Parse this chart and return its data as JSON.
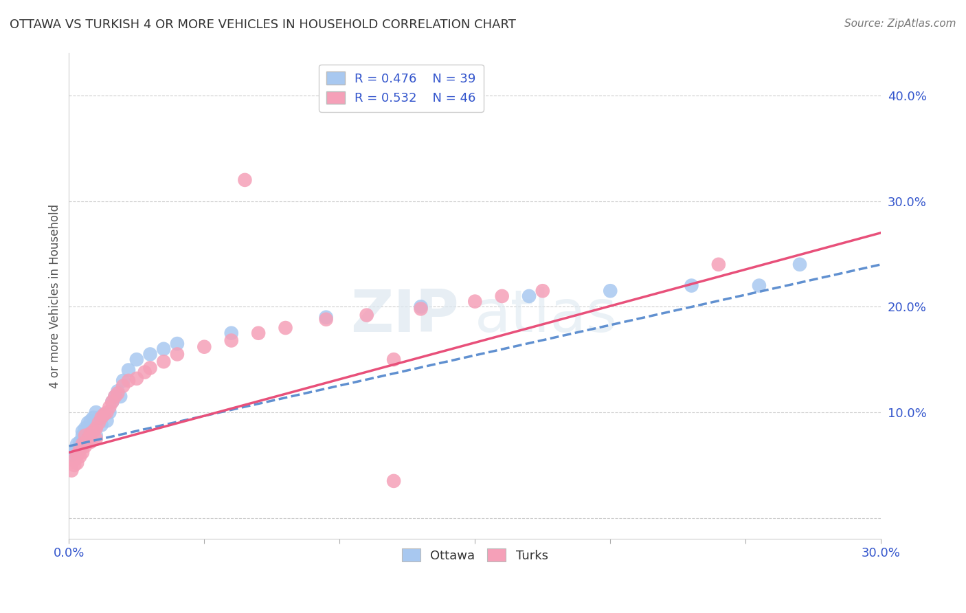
{
  "title": "OTTAWA VS TURKISH 4 OR MORE VEHICLES IN HOUSEHOLD CORRELATION CHART",
  "source": "Source: ZipAtlas.com",
  "ylabel_label": "4 or more Vehicles in Household",
  "xlim": [
    0.0,
    0.3
  ],
  "ylim": [
    -0.02,
    0.44
  ],
  "xticks": [
    0.0,
    0.05,
    0.1,
    0.15,
    0.2,
    0.25,
    0.3
  ],
  "xtick_labels": [
    "0.0%",
    "",
    "",
    "",
    "",
    "",
    "30.0%"
  ],
  "ytick_positions": [
    0.0,
    0.1,
    0.2,
    0.3,
    0.4
  ],
  "ytick_labels": [
    "",
    "10.0%",
    "20.0%",
    "30.0%",
    "40.0%"
  ],
  "grid_color": "#cccccc",
  "background_color": "#ffffff",
  "ottawa_color": "#a8c8f0",
  "turks_color": "#f5a0b8",
  "ottawa_line_color": "#6090d0",
  "turks_line_color": "#e8507a",
  "legend_text_color": "#3355cc",
  "watermark1": "ZIP",
  "watermark2": "atlas",
  "ottawa_scatter_x": [
    0.001,
    0.002,
    0.003,
    0.003,
    0.004,
    0.004,
    0.005,
    0.005,
    0.006,
    0.006,
    0.007,
    0.007,
    0.008,
    0.009,
    0.01,
    0.01,
    0.011,
    0.012,
    0.013,
    0.014,
    0.015,
    0.016,
    0.017,
    0.018,
    0.019,
    0.02,
    0.022,
    0.025,
    0.03,
    0.035,
    0.04,
    0.06,
    0.095,
    0.13,
    0.17,
    0.2,
    0.23,
    0.255,
    0.27
  ],
  "ottawa_scatter_y": [
    0.06,
    0.062,
    0.065,
    0.07,
    0.068,
    0.072,
    0.078,
    0.082,
    0.075,
    0.085,
    0.08,
    0.09,
    0.092,
    0.095,
    0.1,
    0.078,
    0.095,
    0.088,
    0.098,
    0.092,
    0.1,
    0.11,
    0.115,
    0.12,
    0.115,
    0.13,
    0.14,
    0.15,
    0.155,
    0.16,
    0.165,
    0.175,
    0.19,
    0.2,
    0.21,
    0.215,
    0.22,
    0.22,
    0.24
  ],
  "turks_scatter_x": [
    0.001,
    0.002,
    0.002,
    0.003,
    0.003,
    0.004,
    0.004,
    0.005,
    0.005,
    0.006,
    0.006,
    0.007,
    0.008,
    0.008,
    0.009,
    0.01,
    0.01,
    0.011,
    0.012,
    0.013,
    0.014,
    0.015,
    0.016,
    0.017,
    0.018,
    0.02,
    0.022,
    0.025,
    0.028,
    0.03,
    0.035,
    0.04,
    0.05,
    0.06,
    0.07,
    0.08,
    0.095,
    0.11,
    0.13,
    0.15,
    0.16,
    0.175,
    0.12,
    0.24,
    0.12,
    0.065
  ],
  "turks_scatter_y": [
    0.045,
    0.05,
    0.055,
    0.052,
    0.06,
    0.058,
    0.065,
    0.062,
    0.07,
    0.068,
    0.078,
    0.075,
    0.072,
    0.08,
    0.082,
    0.075,
    0.085,
    0.09,
    0.095,
    0.098,
    0.1,
    0.105,
    0.11,
    0.115,
    0.118,
    0.125,
    0.13,
    0.132,
    0.138,
    0.142,
    0.148,
    0.155,
    0.162,
    0.168,
    0.175,
    0.18,
    0.188,
    0.192,
    0.198,
    0.205,
    0.21,
    0.215,
    0.15,
    0.24,
    0.035,
    0.32
  ],
  "ottawa_line_x": [
    0.0,
    0.3
  ],
  "ottawa_line_y": [
    0.068,
    0.24
  ],
  "turks_line_x": [
    0.0,
    0.3
  ],
  "turks_line_y": [
    0.062,
    0.27
  ]
}
